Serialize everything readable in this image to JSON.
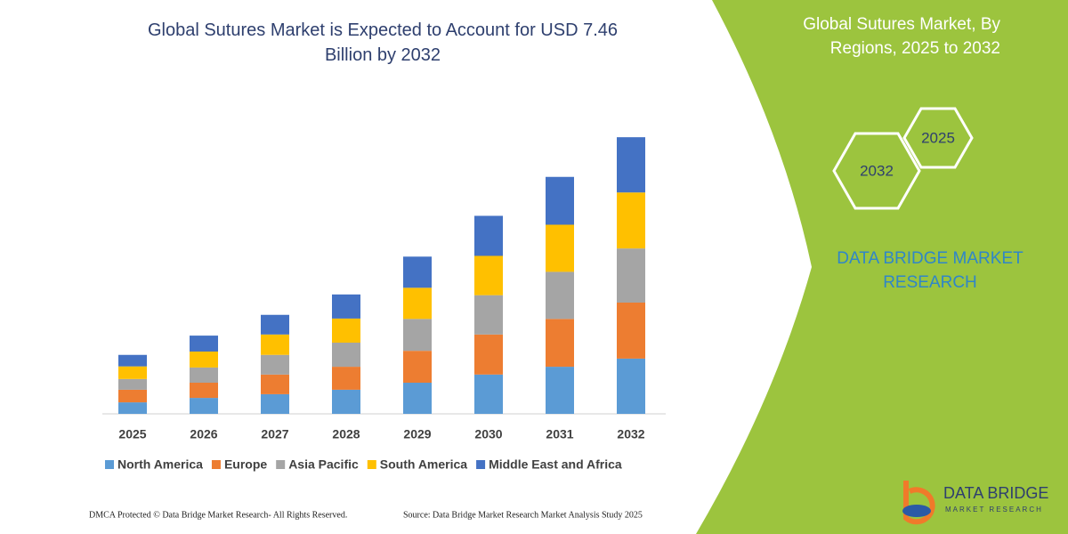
{
  "chart_data": {
    "type": "stacked_bar",
    "title": "Global Sutures Market is Expected to Account for USD 7.46 Billion by 2032",
    "categories": [
      "2025",
      "2026",
      "2027",
      "2028",
      "2029",
      "2030",
      "2031",
      "2032"
    ],
    "series": [
      {
        "name": "North America",
        "color": "#5b9bd5",
        "values": [
          0.31,
          0.43,
          0.53,
          0.65,
          0.84,
          1.06,
          1.27,
          1.49
        ]
      },
      {
        "name": "Europe",
        "color": "#ed7d31",
        "values": [
          0.34,
          0.41,
          0.53,
          0.62,
          0.86,
          1.08,
          1.29,
          1.51
        ]
      },
      {
        "name": "Asia Pacific",
        "color": "#a5a5a5",
        "values": [
          0.29,
          0.41,
          0.53,
          0.65,
          0.86,
          1.06,
          1.27,
          1.46
        ]
      },
      {
        "name": "South America",
        "color": "#ffc000",
        "values": [
          0.34,
          0.43,
          0.55,
          0.65,
          0.84,
          1.06,
          1.27,
          1.51
        ]
      },
      {
        "name": "Middle East and Africa",
        "color": "#4472c4",
        "values": [
          0.31,
          0.43,
          0.53,
          0.65,
          0.84,
          1.08,
          1.29,
          1.49
        ]
      }
    ],
    "ylim": [
      0,
      7.8
    ],
    "grid": false,
    "legend": "bottom"
  },
  "side_panel": {
    "title": "Global Sutures Market, By Regions, 2025 to 2032",
    "hexagons": [
      "2025",
      "2032"
    ],
    "brand": "DATA BRIDGE MARKET RESEARCH"
  },
  "footer": {
    "copyright": "DMCA Protected © Data Bridge Market Research- All Rights Reserved.",
    "source": "Source: Data Bridge Market Research Market Analysis Study 2025"
  },
  "logo": {
    "name": "DATA BRIDGE",
    "tagline": "MARKET RESEARCH"
  }
}
